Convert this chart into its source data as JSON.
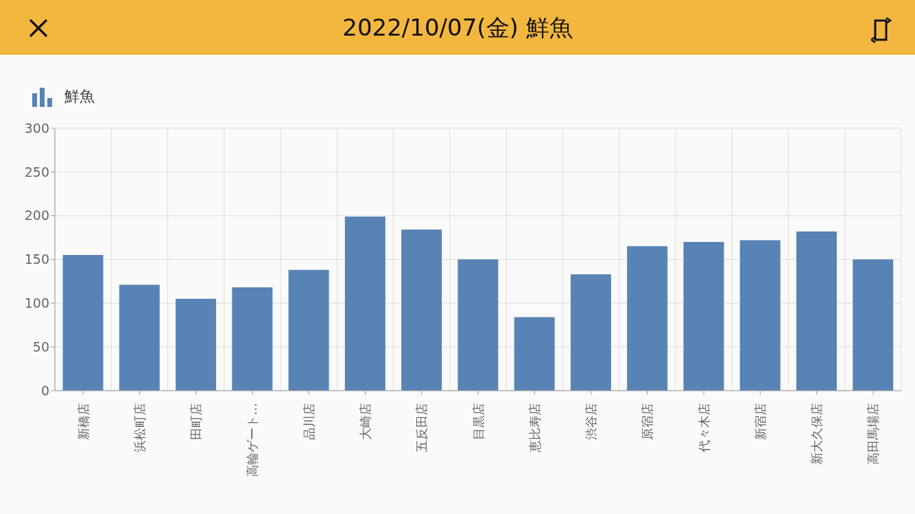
{
  "chart_data": {
    "type": "bar",
    "title": "2022/10/07(金) 鮮魚",
    "categories": [
      "新橋店",
      "浜松町店",
      "田町店",
      "高輪ゲート…",
      "品川店",
      "大崎店",
      "五反田店",
      "目黒店",
      "恵比寿店",
      "渋谷店",
      "原宿店",
      "代々木店",
      "新宿店",
      "新大久保店",
      "高田馬場店"
    ],
    "series": [
      {
        "name": "鮮魚",
        "color": "#5884b5",
        "values": [
          155,
          121,
          105,
          118,
          138,
          199,
          184,
          150,
          84,
          133,
          165,
          170,
          172,
          182,
          150
        ]
      }
    ],
    "ylim": [
      0,
      300
    ],
    "yticks": [
      0,
      50,
      100,
      150,
      200,
      250,
      300
    ],
    "grid": true,
    "legend": "top left"
  }
}
